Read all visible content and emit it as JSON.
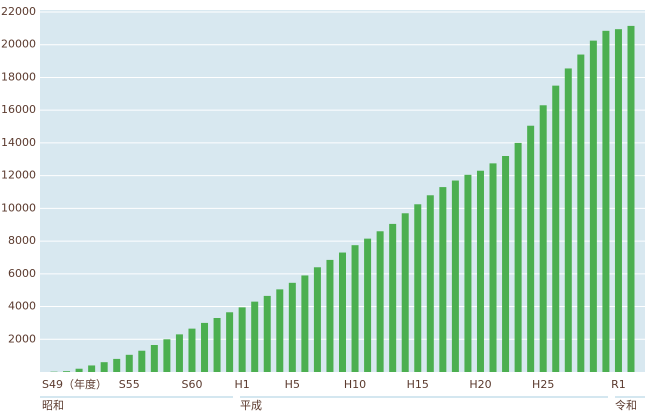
{
  "chart_data": {
    "type": "bar",
    "categories": [
      "S49（年度）",
      null,
      null,
      null,
      null,
      null,
      "S55",
      null,
      null,
      null,
      null,
      "S60",
      null,
      null,
      null,
      "H1",
      null,
      null,
      null,
      "H5",
      null,
      null,
      null,
      null,
      "H10",
      null,
      null,
      null,
      null,
      "H15",
      null,
      null,
      null,
      null,
      "H20",
      null,
      null,
      null,
      null,
      "H25",
      null,
      null,
      null,
      null,
      null,
      "R1",
      null
    ],
    "values": [
      20,
      50,
      200,
      400,
      600,
      800,
      1050,
      1300,
      1650,
      2000,
      2300,
      2650,
      3000,
      3300,
      3650,
      3950,
      4300,
      4650,
      5050,
      5450,
      5900,
      6400,
      6850,
      7300,
      7750,
      8150,
      8600,
      9050,
      9700,
      10250,
      10800,
      11300,
      11700,
      12050,
      12300,
      12750,
      13200,
      14000,
      15050,
      16300,
      17500,
      18550,
      19400,
      20250,
      20850,
      20950,
      21150
    ],
    "color": "#4caf50",
    "ylim": [
      0,
      22000
    ],
    "yticks": [
      2000,
      4000,
      6000,
      8000,
      10000,
      12000,
      14000,
      16000,
      18000,
      20000,
      22000
    ],
    "grid": true,
    "annotations": [
      "昭和",
      "平成",
      "令和"
    ]
  }
}
